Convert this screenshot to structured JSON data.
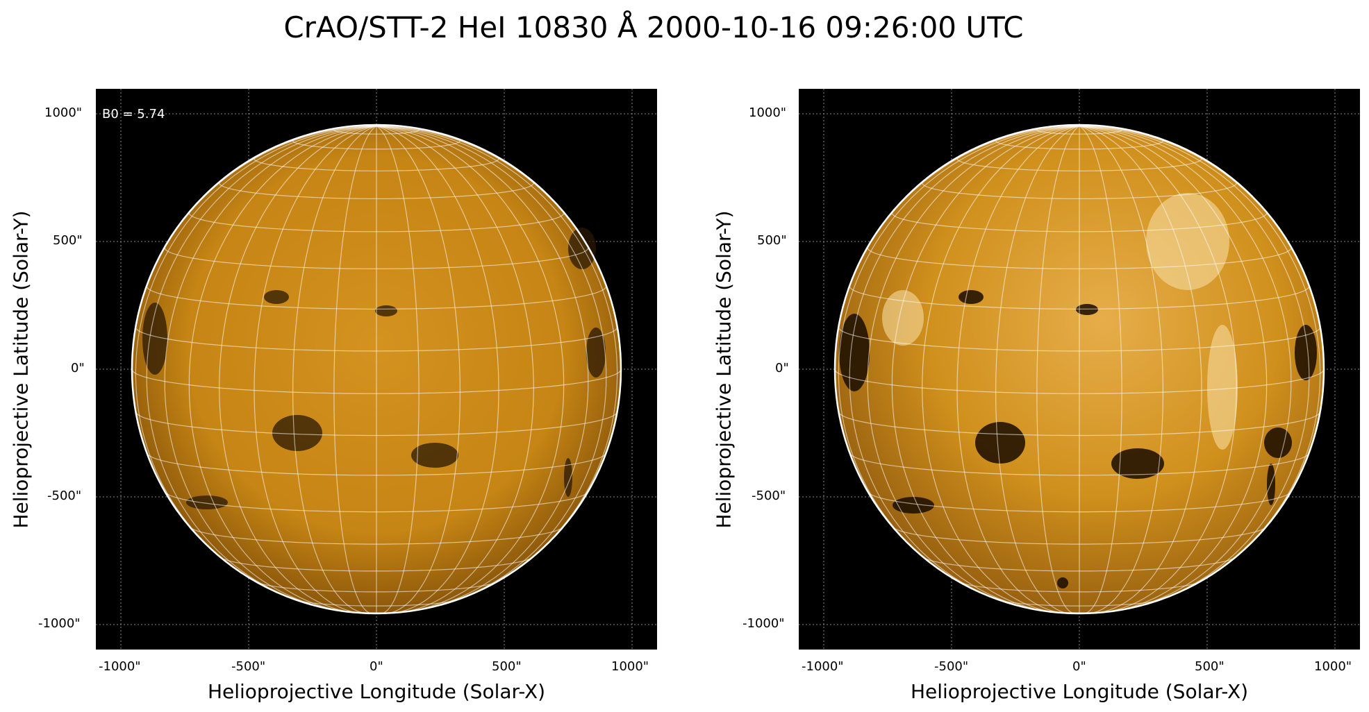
{
  "title": "CrAO/STT-2 HeI 10830 Å 2000-10-16 09:26:00 UTC",
  "panels": [
    {
      "id": "left",
      "xlabel": "Helioprojective Longitude (Solar-X)",
      "ylabel": "Helioprojective Latitude (Solar-Y)",
      "annotation": "B0 = 5.74",
      "xticks": [
        "-1000\"",
        "-500\"",
        "0\"",
        "500\"",
        "1000\""
      ],
      "yticks": [
        "1000\"",
        "500\"",
        "0\"",
        "-500\"",
        "-1000\""
      ]
    },
    {
      "id": "right",
      "xlabel": "Helioprojective Longitude (Solar-X)",
      "ylabel": "Helioprojective Latitude (Solar-Y)",
      "annotation": "",
      "xticks": [
        "-1000\"",
        "-500\"",
        "0\"",
        "500\"",
        "1000\""
      ],
      "yticks": [
        "1000\"",
        "500\"",
        "0\"",
        "-500\"",
        "-1000\""
      ]
    }
  ],
  "colors": {
    "disk_left": "#c98716",
    "disk_right": "#d49420",
    "background": "#000000",
    "grid": "#ffffff",
    "limb": "#ffffff"
  }
}
